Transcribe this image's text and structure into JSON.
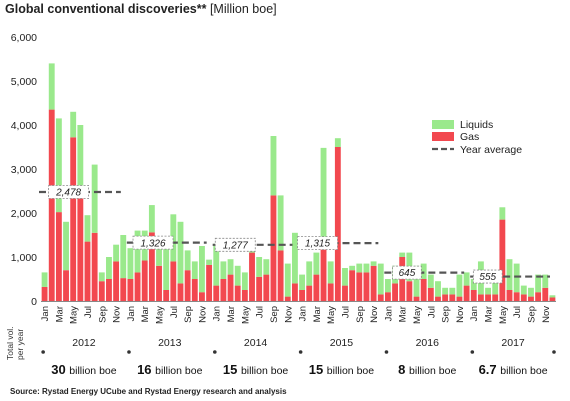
{
  "title": {
    "main": "Global conventional discoveries**",
    "unit": "[Million boe]"
  },
  "source": "Source: Rystad Energy UCube and Rystad Energy research and analysis",
  "totals_label_lines": [
    "Total vol.",
    "per year"
  ],
  "colors": {
    "gas": "#f2484f",
    "liquids": "#9ae98c",
    "average": "#555555",
    "axis": "#888888"
  },
  "chart_data": {
    "type": "bar",
    "stacked": true,
    "ylim": [
      0,
      6000
    ],
    "yticks": [
      0,
      1000,
      2000,
      3000,
      4000,
      5000,
      6000
    ],
    "ytick_labels": [
      "0",
      "1,000",
      "2,000",
      "3,000",
      "4,000",
      "5,000",
      "6,000"
    ],
    "month_tick_labels": [
      "Jan",
      "Mar",
      "May",
      "Jul",
      "Sep",
      "Nov"
    ],
    "years": [
      "2012",
      "2013",
      "2014",
      "2015",
      "2016",
      "2017"
    ],
    "legend": {
      "position": "top-right",
      "entries": [
        "Liquids",
        "Gas",
        "Year average"
      ]
    },
    "series": [
      {
        "name": "Gas",
        "color": "#f2484f",
        "values": [
          320,
          4350,
          2020,
          700,
          3720,
          2350,
          1350,
          1550,
          450,
          500,
          900,
          520,
          500,
          650,
          920,
          1560,
          800,
          250,
          900,
          400,
          700,
          500,
          200,
          820,
          350,
          500,
          600,
          350,
          250,
          1100,
          550,
          600,
          2400,
          1150,
          100,
          400,
          250,
          350,
          600,
          1200,
          400,
          3500,
          350,
          700,
          650,
          650,
          800,
          150,
          200,
          400,
          1000,
          450,
          100,
          500,
          300,
          100,
          150,
          150,
          100,
          350,
          250,
          150,
          150,
          150,
          1850,
          250,
          200,
          150,
          100,
          200,
          300,
          80
        ]
      },
      {
        "name": "Liquids",
        "color": "#9ae98c",
        "values": [
          330,
          1050,
          2130,
          1100,
          580,
          1650,
          600,
          1550,
          200,
          500,
          380,
          980,
          700,
          950,
          680,
          620,
          500,
          1200,
          1070,
          1400,
          450,
          400,
          1050,
          120,
          950,
          400,
          350,
          450,
          400,
          100,
          450,
          350,
          1350,
          1250,
          750,
          1150,
          350,
          550,
          500,
          2280,
          500,
          200,
          400,
          100,
          200,
          200,
          100,
          700,
          300,
          400,
          100,
          650,
          700,
          350,
          300,
          350,
          150,
          150,
          500,
          300,
          250,
          750,
          150,
          350,
          280,
          700,
          650,
          200,
          200,
          400,
          300,
          50
        ]
      }
    ],
    "year_averages": [
      {
        "year": "2012",
        "value": 2478,
        "label": "2,478"
      },
      {
        "year": "2013",
        "value": 1326,
        "label": "1,326"
      },
      {
        "year": "2014",
        "value": 1277,
        "label": "1,277"
      },
      {
        "year": "2015",
        "value": 1315,
        "label": "1,315"
      },
      {
        "year": "2016",
        "value": 645,
        "label": "645"
      },
      {
        "year": "2017",
        "value": 555,
        "label": "555"
      }
    ],
    "year_totals": [
      {
        "year": "2012",
        "value": "30",
        "unit": "billion boe"
      },
      {
        "year": "2013",
        "value": "16",
        "unit": "billion boe"
      },
      {
        "year": "2014",
        "value": "15",
        "unit": "billion boe"
      },
      {
        "year": "2015",
        "value": "15",
        "unit": "billion boe"
      },
      {
        "year": "2016",
        "value": "8",
        "unit": "billion boe"
      },
      {
        "year": "2017",
        "value": "6.7",
        "unit": "billion boe"
      }
    ]
  }
}
